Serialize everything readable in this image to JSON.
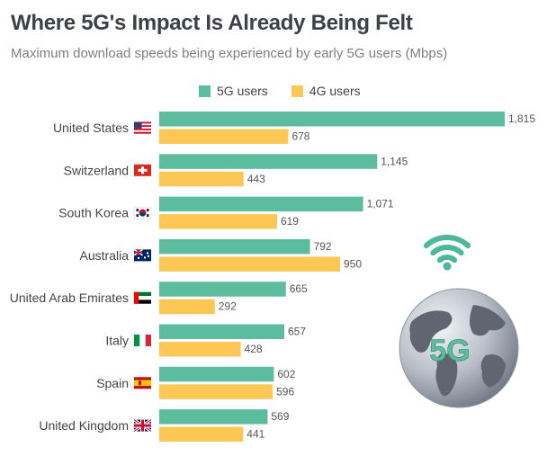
{
  "chart_data": {
    "type": "bar",
    "orientation": "horizontal",
    "title": "Where 5G's Impact Is Already Being Felt",
    "subtitle": "Maximum download speeds being experienced by early 5G users (Mbps)",
    "categories": [
      "United States",
      "Switzerland",
      "South Korea",
      "Australia",
      "United Arab Emirates",
      "Italy",
      "Spain",
      "United Kingdom"
    ],
    "series": [
      {
        "name": "5G users",
        "color": "#5bbd9e",
        "values": [
          1815,
          1145,
          1071,
          792,
          665,
          657,
          602,
          569
        ]
      },
      {
        "name": "4G users",
        "color": "#fcc755",
        "values": [
          678,
          443,
          619,
          950,
          292,
          428,
          596,
          441
        ]
      }
    ],
    "value_labels": {
      "5G users": [
        "1,815",
        "1,145",
        "1,071",
        "792",
        "665",
        "657",
        "602",
        "569"
      ],
      "4G users": [
        "678",
        "443",
        "619",
        "950",
        "292",
        "428",
        "596",
        "441"
      ]
    },
    "legend_position": "top",
    "grid": false,
    "xlim": [
      0,
      1815
    ]
  },
  "flags": [
    "us-flag-icon",
    "switzerland-flag-icon",
    "south-korea-flag-icon",
    "australia-flag-icon",
    "uae-flag-icon",
    "italy-flag-icon",
    "spain-flag-icon",
    "uk-flag-icon"
  ],
  "illustration": {
    "icon": "globe-5g-icon",
    "label": "5G",
    "wifi_color": "#4cb899",
    "label_color": "#5bbd9e"
  }
}
